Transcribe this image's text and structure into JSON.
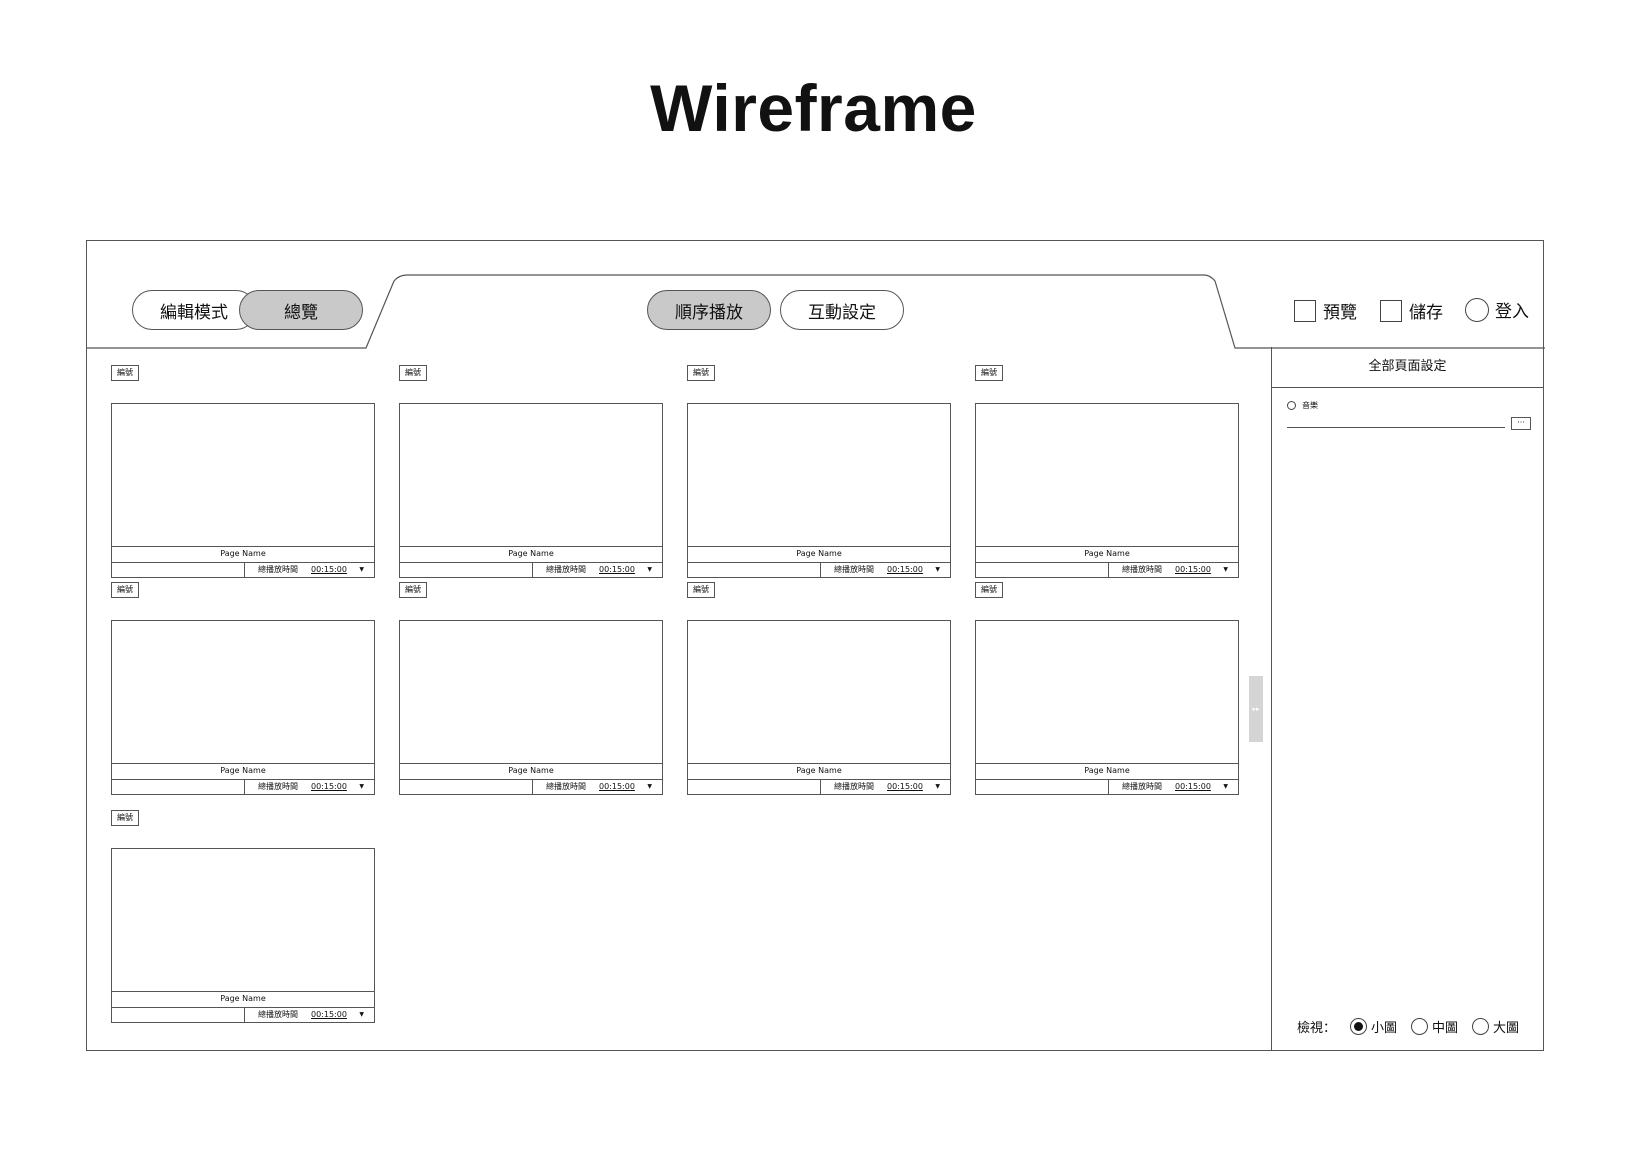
{
  "title": "Wireframe",
  "header": {
    "mode_tabs": [
      {
        "label": "編輯模式",
        "active": false
      },
      {
        "label": "總覽",
        "active": true
      }
    ],
    "play_tabs": [
      {
        "label": "順序播放",
        "active": true
      },
      {
        "label": "互動設定",
        "active": false
      }
    ],
    "actions": {
      "preview": "預覽",
      "save": "儲存",
      "login": "登入"
    }
  },
  "cards": [
    {
      "tag": "編號",
      "name": "Page Name",
      "time_label": "總播放時間",
      "time": "00:15:00"
    },
    {
      "tag": "編號",
      "name": "Page Name",
      "time_label": "總播放時間",
      "time": "00:15:00"
    },
    {
      "tag": "編號",
      "name": "Page Name",
      "time_label": "總播放時間",
      "time": "00:15:00"
    },
    {
      "tag": "編號",
      "name": "Page Name",
      "time_label": "總播放時間",
      "time": "00:15:00"
    },
    {
      "tag": "編號",
      "name": "Page Name",
      "time_label": "總播放時間",
      "time": "00:15:00"
    },
    {
      "tag": "編號",
      "name": "Page Name",
      "time_label": "總播放時間",
      "time": "00:15:00"
    },
    {
      "tag": "編號",
      "name": "Page Name",
      "time_label": "總播放時間",
      "time": "00:15:00"
    },
    {
      "tag": "編號",
      "name": "Page Name",
      "time_label": "總播放時間",
      "time": "00:15:00"
    },
    {
      "tag": "編號",
      "name": "Page Name",
      "time_label": "總播放時間",
      "time": "00:15:00"
    }
  ],
  "panel": {
    "title": "全部頁面設定",
    "music_label": "音樂",
    "browse_label": "···",
    "view_label": "檢視：",
    "view_options": [
      {
        "label": "小圖",
        "selected": true
      },
      {
        "label": "中圖",
        "selected": false
      },
      {
        "label": "大圖",
        "selected": false
      }
    ]
  },
  "handle_glyph": "▸▸"
}
